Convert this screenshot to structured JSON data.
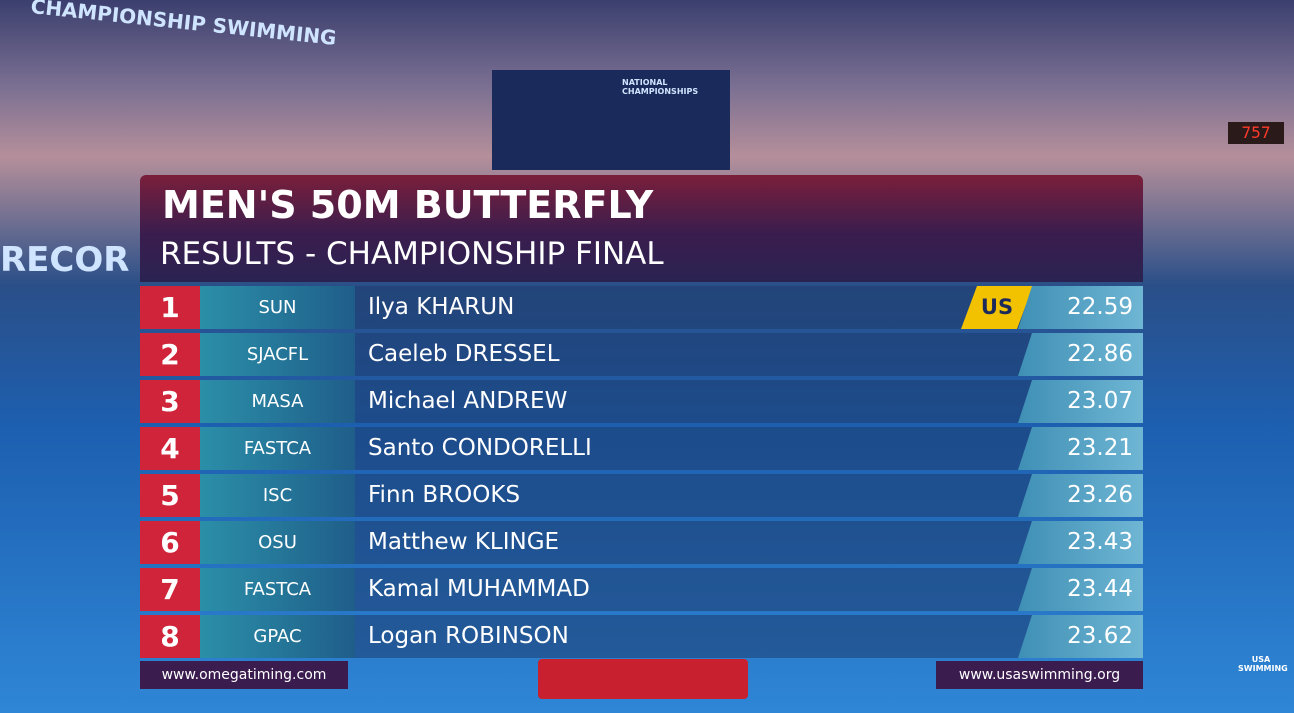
{
  "background": {
    "banner": "CHAMPIONSHIP SWIMMING",
    "pool_sign": "RECOR",
    "screen": "NATIONAL CHAMPIONSHIPS",
    "clock": "757",
    "logo": "USA SWIMMING"
  },
  "header": {
    "title": "MEN'S 50M BUTTERFLY",
    "subtitle": "RESULTS - CHAMPIONSHIP FINAL"
  },
  "table": {
    "rows": [
      {
        "place": "1",
        "club": "SUN",
        "name": "Ilya KHARUN",
        "badge": "US",
        "time": "22.59"
      },
      {
        "place": "2",
        "club": "SJACFL",
        "name": "Caeleb DRESSEL",
        "time": "22.86"
      },
      {
        "place": "3",
        "club": "MASA",
        "name": "Michael ANDREW",
        "time": "23.07"
      },
      {
        "place": "4",
        "club": "FASTCA",
        "name": "Santo CONDORELLI",
        "time": "23.21"
      },
      {
        "place": "5",
        "club": "ISC",
        "name": "Finn BROOKS",
        "time": "23.26"
      },
      {
        "place": "6",
        "club": "OSU",
        "name": "Matthew KLINGE",
        "time": "23.43"
      },
      {
        "place": "7",
        "club": "FASTCA",
        "name": "Kamal MUHAMMAD",
        "time": "23.44"
      },
      {
        "place": "8",
        "club": "GPAC",
        "name": "Logan ROBINSON",
        "time": "23.62"
      }
    ]
  },
  "footer": {
    "left": "www.omegatiming.com",
    "right": "www.usaswimming.org"
  }
}
